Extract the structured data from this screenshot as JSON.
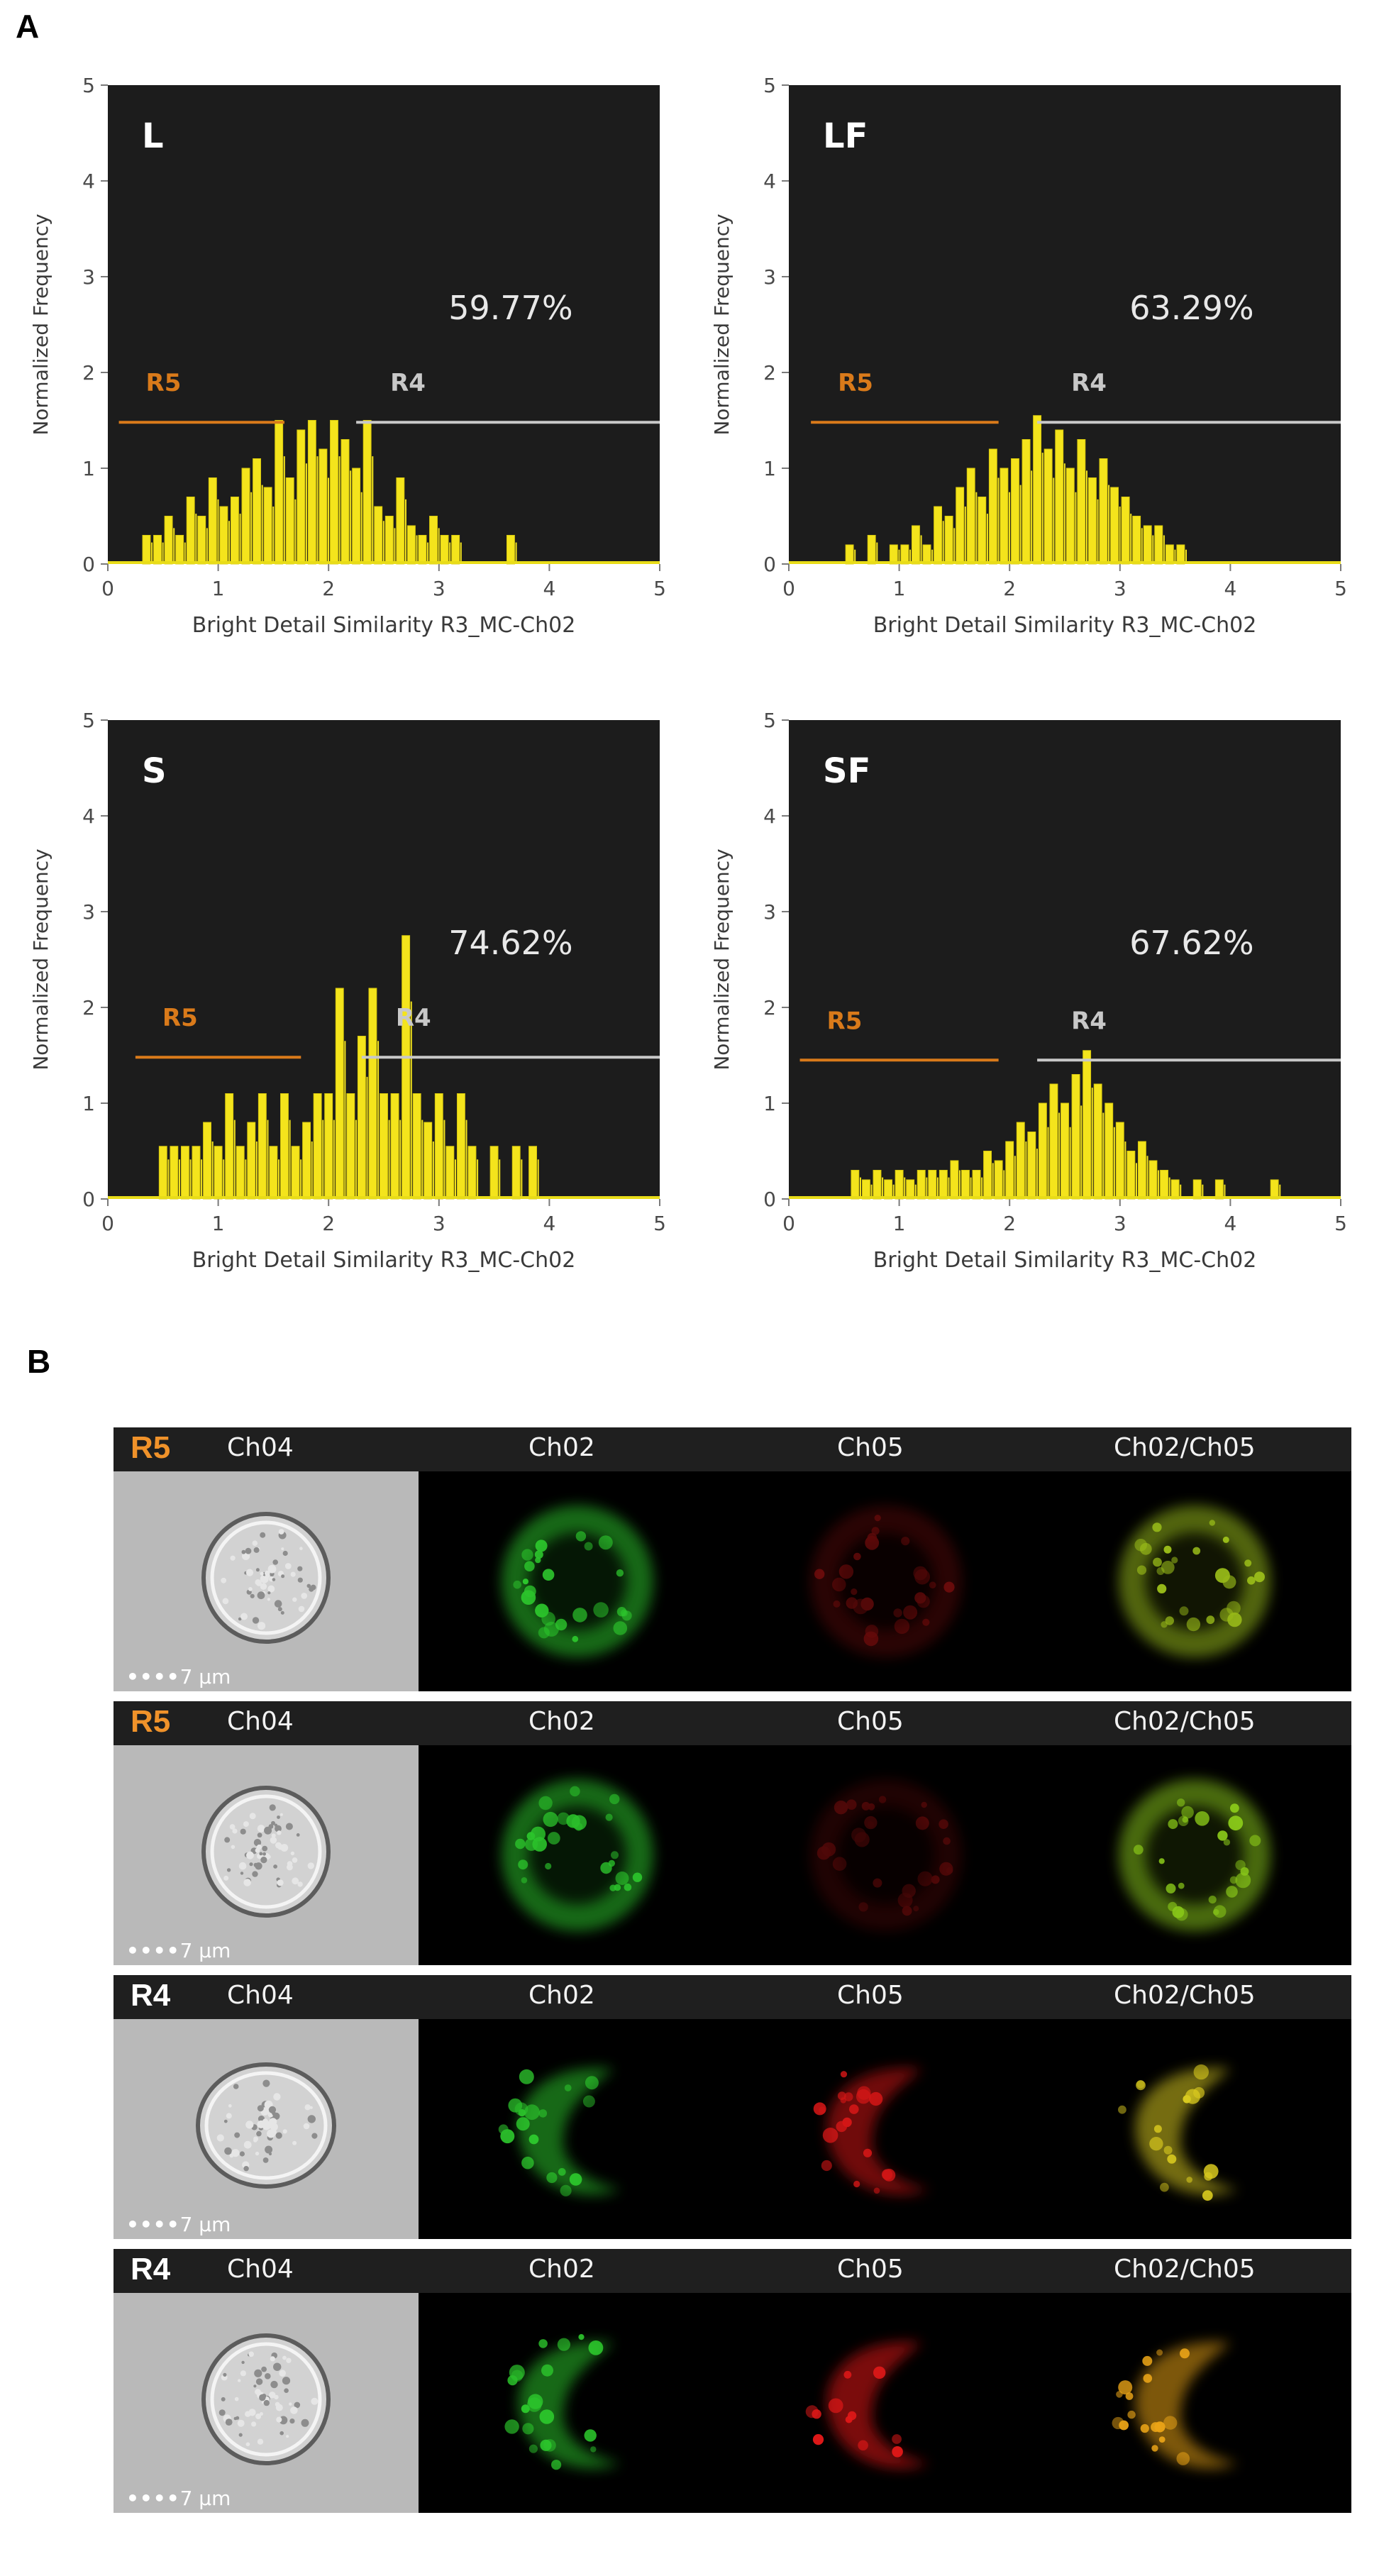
{
  "panel_a_label": "A",
  "panel_b_label": "B",
  "chart_data": [
    {
      "type": "histogram",
      "label": "L",
      "percentage": "59.77%",
      "xlabel": "Bright Detail Similarity R3_MC-Ch02",
      "ylabel": "Normalized Frequency",
      "xlim": [
        0,
        5
      ],
      "ylim": [
        0,
        5
      ],
      "xticks": [
        "0",
        "1",
        "2",
        "3",
        "4",
        "5"
      ],
      "yticks": [
        "0",
        "1",
        "2",
        "3",
        "4",
        "5"
      ],
      "gates": [
        {
          "name": "R5",
          "color": "#d97a1a",
          "x_start": 0.1,
          "x_end": 1.6,
          "y": 1.48
        },
        {
          "name": "R4",
          "color": "#c8c8c8",
          "x_start": 2.25,
          "x_end": 5.0,
          "y": 1.48
        }
      ],
      "x": [
        0.35,
        0.45,
        0.55,
        0.65,
        0.75,
        0.85,
        0.95,
        1.05,
        1.15,
        1.25,
        1.35,
        1.45,
        1.55,
        1.65,
        1.75,
        1.85,
        1.95,
        2.05,
        2.15,
        2.25,
        2.35,
        2.45,
        2.55,
        2.65,
        2.75,
        2.85,
        2.95,
        3.05,
        3.15,
        3.65
      ],
      "values": [
        0.3,
        0.3,
        0.5,
        0.3,
        0.7,
        0.5,
        0.9,
        0.6,
        0.7,
        1.0,
        1.1,
        0.8,
        1.5,
        0.9,
        1.4,
        1.5,
        1.2,
        1.5,
        1.3,
        1.0,
        1.5,
        0.6,
        0.5,
        0.9,
        0.4,
        0.3,
        0.5,
        0.3,
        0.3,
        0.3
      ]
    },
    {
      "type": "histogram",
      "label": "LF",
      "percentage": "63.29%",
      "xlabel": "Bright Detail Similarity R3_MC-Ch02",
      "ylabel": "Normalized Frequency",
      "xlim": [
        0,
        5
      ],
      "ylim": [
        0,
        5
      ],
      "xticks": [
        "0",
        "1",
        "2",
        "3",
        "4",
        "5"
      ],
      "yticks": [
        "0",
        "1",
        "2",
        "3",
        "4",
        "5"
      ],
      "gates": [
        {
          "name": "R5",
          "color": "#d97a1a",
          "x_start": 0.2,
          "x_end": 1.9,
          "y": 1.48
        },
        {
          "name": "R4",
          "color": "#c8c8c8",
          "x_start": 2.25,
          "x_end": 5.0,
          "y": 1.48
        }
      ],
      "x": [
        0.55,
        0.75,
        0.95,
        1.05,
        1.15,
        1.25,
        1.35,
        1.45,
        1.55,
        1.65,
        1.75,
        1.85,
        1.95,
        2.05,
        2.15,
        2.25,
        2.35,
        2.45,
        2.55,
        2.65,
        2.75,
        2.85,
        2.95,
        3.05,
        3.15,
        3.25,
        3.35,
        3.45,
        3.55
      ],
      "values": [
        0.2,
        0.3,
        0.2,
        0.2,
        0.4,
        0.2,
        0.6,
        0.5,
        0.8,
        1.0,
        0.7,
        1.2,
        1.0,
        1.1,
        1.3,
        1.55,
        1.2,
        1.4,
        1.0,
        1.3,
        0.9,
        1.1,
        0.8,
        0.7,
        0.5,
        0.4,
        0.4,
        0.2,
        0.2
      ]
    },
    {
      "type": "histogram",
      "label": "S",
      "percentage": "74.62%",
      "xlabel": "Bright Detail Similarity R3_MC-Ch02",
      "ylabel": "Normalized Frequency",
      "xlim": [
        0,
        5
      ],
      "ylim": [
        0,
        5
      ],
      "xticks": [
        "0",
        "1",
        "2",
        "3",
        "4",
        "5"
      ],
      "yticks": [
        "0",
        "1",
        "2",
        "3",
        "4",
        "5"
      ],
      "gates": [
        {
          "name": "R5",
          "color": "#d97a1a",
          "x_start": 0.25,
          "x_end": 1.75,
          "y": 1.48
        },
        {
          "name": "R4",
          "color": "#c8c8c8",
          "x_start": 2.3,
          "x_end": 5.0,
          "y": 1.48
        }
      ],
      "x": [
        0.5,
        0.6,
        0.7,
        0.8,
        0.9,
        1.0,
        1.1,
        1.2,
        1.3,
        1.4,
        1.5,
        1.6,
        1.7,
        1.8,
        1.9,
        2.0,
        2.1,
        2.2,
        2.3,
        2.4,
        2.5,
        2.6,
        2.7,
        2.8,
        2.9,
        3.0,
        3.1,
        3.2,
        3.3,
        3.5,
        3.7,
        3.85
      ],
      "values": [
        0.55,
        0.55,
        0.55,
        0.55,
        0.8,
        0.55,
        1.1,
        0.55,
        0.8,
        1.1,
        0.55,
        1.1,
        0.55,
        0.8,
        1.1,
        1.1,
        2.2,
        1.1,
        1.7,
        2.2,
        1.1,
        1.1,
        2.75,
        1.1,
        0.8,
        1.1,
        0.55,
        1.1,
        0.55,
        0.55,
        0.55,
        0.55
      ]
    },
    {
      "type": "histogram",
      "label": "SF",
      "percentage": "67.62%",
      "xlabel": "Bright Detail Similarity R3_MC-Ch02",
      "ylabel": "Normalized Frequency",
      "xlim": [
        0,
        5
      ],
      "ylim": [
        0,
        5
      ],
      "xticks": [
        "0",
        "1",
        "2",
        "3",
        "4",
        "5"
      ],
      "yticks": [
        "0",
        "1",
        "2",
        "3",
        "4",
        "5"
      ],
      "gates": [
        {
          "name": "R5",
          "color": "#d97a1a",
          "x_start": 0.1,
          "x_end": 1.9,
          "y": 1.45
        },
        {
          "name": "R4",
          "color": "#c8c8c8",
          "x_start": 2.25,
          "x_end": 5.0,
          "y": 1.45
        }
      ],
      "x": [
        0.6,
        0.7,
        0.8,
        0.9,
        1.0,
        1.1,
        1.2,
        1.3,
        1.4,
        1.5,
        1.6,
        1.7,
        1.8,
        1.9,
        2.0,
        2.1,
        2.2,
        2.3,
        2.4,
        2.5,
        2.6,
        2.7,
        2.8,
        2.9,
        3.0,
        3.1,
        3.2,
        3.3,
        3.4,
        3.5,
        3.7,
        3.9,
        4.4
      ],
      "values": [
        0.3,
        0.2,
        0.3,
        0.2,
        0.3,
        0.2,
        0.3,
        0.3,
        0.3,
        0.4,
        0.3,
        0.3,
        0.5,
        0.4,
        0.6,
        0.8,
        0.7,
        1.0,
        1.2,
        1.0,
        1.3,
        1.55,
        1.2,
        1.0,
        0.8,
        0.5,
        0.6,
        0.4,
        0.3,
        0.2,
        0.2,
        0.2,
        0.2
      ]
    }
  ],
  "image_strips": [
    {
      "region": "R5",
      "region_color": "#f0922a",
      "bf_label": "Ch04",
      "ch2_label": "Ch02",
      "ch5_label": "Ch05",
      "merge_label": "Ch02/Ch05",
      "scale_label": "7 µm",
      "red_intensity": 0.35,
      "merge_color": "#9ec21a"
    },
    {
      "region": "R5",
      "region_color": "#f0922a",
      "bf_label": "Ch04",
      "ch2_label": "Ch02",
      "ch5_label": "Ch05",
      "merge_label": "Ch02/Ch05",
      "scale_label": "7 µm",
      "red_intensity": 0.25,
      "merge_color": "#8ccc1a"
    },
    {
      "region": "R4",
      "region_color": "#ffffff",
      "bf_label": "Ch04",
      "ch2_label": "Ch02",
      "ch5_label": "Ch05",
      "merge_label": "Ch02/Ch05",
      "scale_label": "7 µm",
      "red_intensity": 0.9,
      "merge_color": "#e0d020"
    },
    {
      "region": "R4",
      "region_color": "#ffffff",
      "bf_label": "Ch04",
      "ch2_label": "Ch02",
      "ch5_label": "Ch05",
      "merge_label": "Ch02/Ch05",
      "scale_label": "7 µm",
      "red_intensity": 1.0,
      "merge_color": "#f0a818"
    }
  ]
}
